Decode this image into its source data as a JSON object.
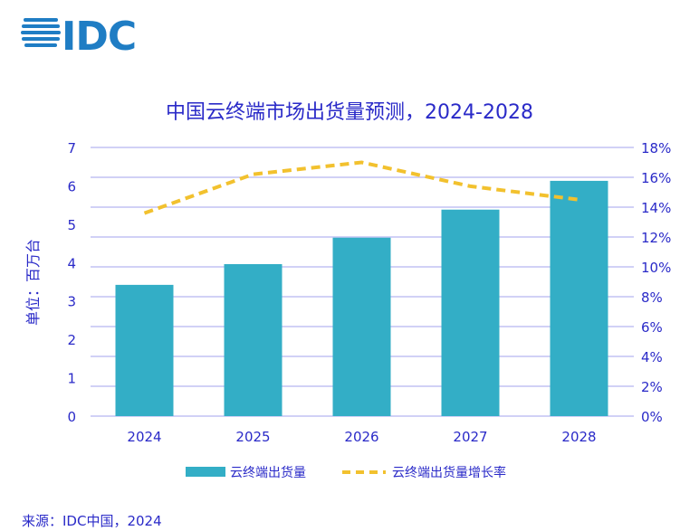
{
  "logo": {
    "text": "IDC",
    "color": "#1f7dc4"
  },
  "source": "来源：IDC中国，2024",
  "chart_data": {
    "type": "bar+line",
    "title": "中国云终端市场出货量预测，2024-2028",
    "ylabel": "单位：百万台",
    "categories": [
      "2024",
      "2025",
      "2026",
      "2027",
      "2028"
    ],
    "series": [
      {
        "name": "云终端出货量",
        "type": "bar",
        "axis": "left",
        "color": "#33aec6",
        "values": [
          3.42,
          3.96,
          4.65,
          5.38,
          6.13
        ]
      },
      {
        "name": "云终端出货量增长率",
        "type": "line",
        "axis": "right",
        "style": "dashed",
        "color": "#f2c12e",
        "values": [
          13.6,
          16.2,
          17.0,
          15.4,
          14.5
        ]
      }
    ],
    "ylim": [
      0,
      7
    ],
    "yticks": [
      "0",
      "1",
      "2",
      "3",
      "4",
      "5",
      "6",
      "7"
    ],
    "y2lim": [
      0,
      18
    ],
    "y2ticks": [
      "0%",
      "2%",
      "4%",
      "6%",
      "8%",
      "10%",
      "12%",
      "14%",
      "16%",
      "18%"
    ],
    "grid": true,
    "legend": "bottom",
    "text_color": "#2a2ac8",
    "grid_color": "#c2c2f4"
  }
}
